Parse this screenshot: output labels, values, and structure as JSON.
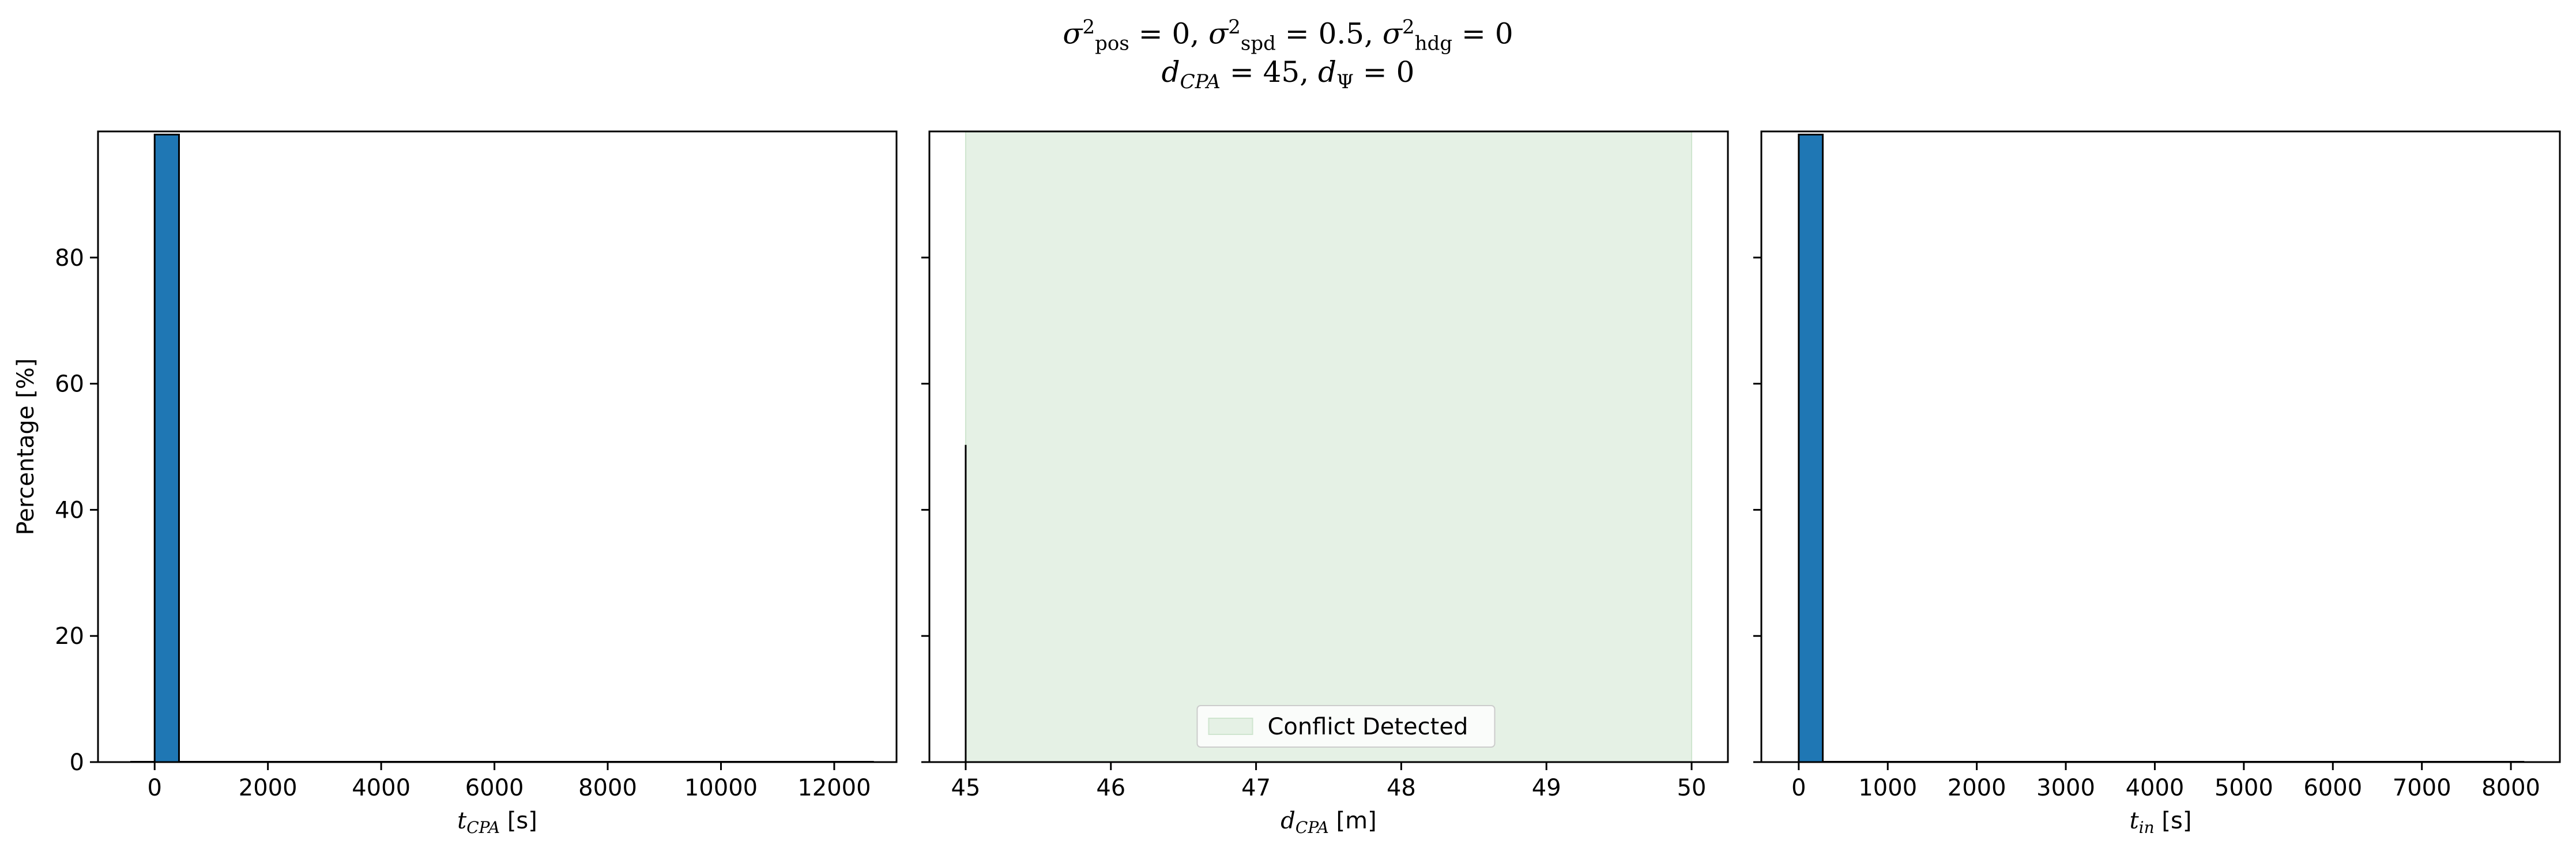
{
  "title": {
    "line1": {
      "sigma_pos": "pos",
      "sigma_pos_value": "= 0,",
      "sigma_spd": "spd",
      "sigma_spd_value": "= 0.5,",
      "sigma_hdg": "hdg",
      "sigma_hdg_value": "= 0"
    },
    "line2": {
      "d_sub": "CPA",
      "d_value": "= 45,",
      "dpsi_sub": "Ψ",
      "dpsi_value": "= 0"
    }
  },
  "chart_data": [
    {
      "type": "bar",
      "panel": "left",
      "title": "",
      "xlabel": "t_CPA [s]",
      "xlabel_var": "t",
      "xlabel_sub": "CPA",
      "xlabel_unit": "[s]",
      "ylabel": "Percentage [%]",
      "xlim": [
        -1000,
        13100
      ],
      "ylim": [
        0,
        100
      ],
      "xticks": [
        0,
        2000,
        4000,
        6000,
        8000,
        10000,
        12000
      ],
      "yticks": [
        0,
        20,
        40,
        60,
        80
      ],
      "color": "#1f77b4",
      "bins": [
        {
          "x0": 0,
          "x1": 430,
          "value": 99.5
        }
      ],
      "underline": {
        "x0": -430,
        "x1": 12700
      }
    },
    {
      "type": "bar",
      "panel": "middle",
      "title": "",
      "xlabel": "d_CPA [m]",
      "xlabel_var": "d",
      "xlabel_sub": "CPA",
      "xlabel_unit": "[m]",
      "ylabel": "",
      "xlim": [
        44.75,
        50.25
      ],
      "ylim": [
        0,
        100
      ],
      "xticks": [
        45,
        46,
        47,
        48,
        49,
        50
      ],
      "yticks": [
        0,
        20,
        40,
        60,
        80
      ],
      "shaded_region": {
        "x0": 45,
        "x1": 50,
        "color": "#e5f1e5"
      },
      "legend": {
        "label": "Conflict Detected",
        "placement": "lower center"
      },
      "lines": [
        {
          "x": 45,
          "y0": 0,
          "y1": 50.3
        }
      ]
    },
    {
      "type": "bar",
      "panel": "right",
      "title": "",
      "xlabel": "t_in [s]",
      "xlabel_var": "t",
      "xlabel_sub": "in",
      "xlabel_unit": "[s]",
      "ylabel": "",
      "xlim": [
        -420,
        8550
      ],
      "ylim": [
        0,
        100
      ],
      "xticks": [
        0,
        1000,
        2000,
        3000,
        4000,
        5000,
        6000,
        7000,
        8000
      ],
      "yticks": [
        0,
        20,
        40,
        60,
        80
      ],
      "color": "#1f77b4",
      "bins": [
        {
          "x0": 0,
          "x1": 270,
          "value": 99.5
        }
      ],
      "underline": {
        "x0": 0,
        "x1": 8150
      }
    }
  ]
}
